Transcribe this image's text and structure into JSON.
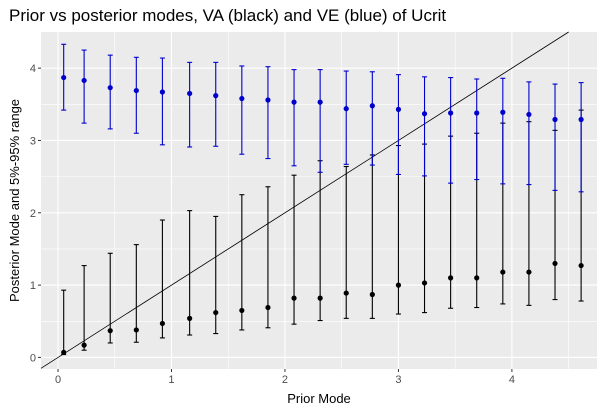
{
  "chart_data": {
    "type": "scatter",
    "title": "Prior vs posterior modes, VA (black) and VE (blue) of Ucrit",
    "xlabel": "Prior Mode",
    "ylabel": "Posterior Mode and 5%-95% range",
    "xlim": [
      -0.15,
      4.75
    ],
    "ylim": [
      -0.16,
      4.5
    ],
    "xticks": [
      0,
      1,
      2,
      3,
      4
    ],
    "yticks": [
      0,
      1,
      2,
      3,
      4
    ],
    "grid": true,
    "background": "#ebebeb",
    "reference_line": {
      "slope": 1,
      "intercept": 0,
      "color": "#000000"
    },
    "series": [
      {
        "color": "#000000",
        "points": [
          {
            "x": 0.05,
            "y": 0.07,
            "lo": 0.04,
            "hi": 0.93
          },
          {
            "x": 0.23,
            "y": 0.17,
            "lo": 0.1,
            "hi": 1.27
          },
          {
            "x": 0.46,
            "y": 0.37,
            "lo": 0.2,
            "hi": 1.44
          },
          {
            "x": 0.69,
            "y": 0.38,
            "lo": 0.21,
            "hi": 1.56
          },
          {
            "x": 0.92,
            "y": 0.47,
            "lo": 0.27,
            "hi": 1.9
          },
          {
            "x": 1.16,
            "y": 0.54,
            "lo": 0.31,
            "hi": 2.03
          },
          {
            "x": 1.39,
            "y": 0.62,
            "lo": 0.33,
            "hi": 1.95
          },
          {
            "x": 1.62,
            "y": 0.65,
            "lo": 0.38,
            "hi": 2.25
          },
          {
            "x": 1.85,
            "y": 0.69,
            "lo": 0.41,
            "hi": 2.36
          },
          {
            "x": 2.08,
            "y": 0.82,
            "lo": 0.46,
            "hi": 2.52
          },
          {
            "x": 2.31,
            "y": 0.82,
            "lo": 0.51,
            "hi": 2.72
          },
          {
            "x": 2.54,
            "y": 0.89,
            "lo": 0.54,
            "hi": 2.64
          },
          {
            "x": 2.77,
            "y": 0.87,
            "lo": 0.54,
            "hi": 2.8
          },
          {
            "x": 3.0,
            "y": 1.0,
            "lo": 0.6,
            "hi": 2.93
          },
          {
            "x": 3.23,
            "y": 1.03,
            "lo": 0.62,
            "hi": 2.95
          },
          {
            "x": 3.46,
            "y": 1.1,
            "lo": 0.68,
            "hi": 3.06
          },
          {
            "x": 3.69,
            "y": 1.1,
            "lo": 0.69,
            "hi": 3.1
          },
          {
            "x": 3.92,
            "y": 1.18,
            "lo": 0.74,
            "hi": 3.24
          },
          {
            "x": 4.15,
            "y": 1.18,
            "lo": 0.72,
            "hi": 3.26
          },
          {
            "x": 4.38,
            "y": 1.3,
            "lo": 0.8,
            "hi": 3.14
          },
          {
            "x": 4.61,
            "y": 1.27,
            "lo": 0.78,
            "hi": 3.42
          }
        ]
      },
      {
        "color": "#0000cd",
        "points": [
          {
            "x": 0.05,
            "y": 3.87,
            "lo": 3.42,
            "hi": 4.33
          },
          {
            "x": 0.23,
            "y": 3.83,
            "lo": 3.24,
            "hi": 4.25
          },
          {
            "x": 0.46,
            "y": 3.73,
            "lo": 3.16,
            "hi": 4.18
          },
          {
            "x": 0.69,
            "y": 3.69,
            "lo": 3.1,
            "hi": 4.15
          },
          {
            "x": 0.92,
            "y": 3.67,
            "lo": 2.94,
            "hi": 4.14
          },
          {
            "x": 1.16,
            "y": 3.65,
            "lo": 2.91,
            "hi": 4.08
          },
          {
            "x": 1.39,
            "y": 3.62,
            "lo": 2.92,
            "hi": 4.08
          },
          {
            "x": 1.62,
            "y": 3.58,
            "lo": 2.81,
            "hi": 4.03
          },
          {
            "x": 1.85,
            "y": 3.56,
            "lo": 2.75,
            "hi": 4.02
          },
          {
            "x": 2.08,
            "y": 3.53,
            "lo": 2.65,
            "hi": 3.98
          },
          {
            "x": 2.31,
            "y": 3.53,
            "lo": 2.56,
            "hi": 3.98
          },
          {
            "x": 2.54,
            "y": 3.44,
            "lo": 2.67,
            "hi": 3.96
          },
          {
            "x": 2.77,
            "y": 3.48,
            "lo": 2.66,
            "hi": 3.95
          },
          {
            "x": 3.0,
            "y": 3.43,
            "lo": 2.53,
            "hi": 3.91
          },
          {
            "x": 3.23,
            "y": 3.37,
            "lo": 2.51,
            "hi": 3.88
          },
          {
            "x": 3.46,
            "y": 3.38,
            "lo": 2.41,
            "hi": 3.87
          },
          {
            "x": 3.69,
            "y": 3.38,
            "lo": 2.46,
            "hi": 3.85
          },
          {
            "x": 3.92,
            "y": 3.39,
            "lo": 2.4,
            "hi": 3.86
          },
          {
            "x": 4.15,
            "y": 3.36,
            "lo": 2.39,
            "hi": 3.81
          },
          {
            "x": 4.38,
            "y": 3.29,
            "lo": 2.31,
            "hi": 3.78
          },
          {
            "x": 4.61,
            "y": 3.29,
            "lo": 2.29,
            "hi": 3.8
          }
        ]
      }
    ]
  }
}
